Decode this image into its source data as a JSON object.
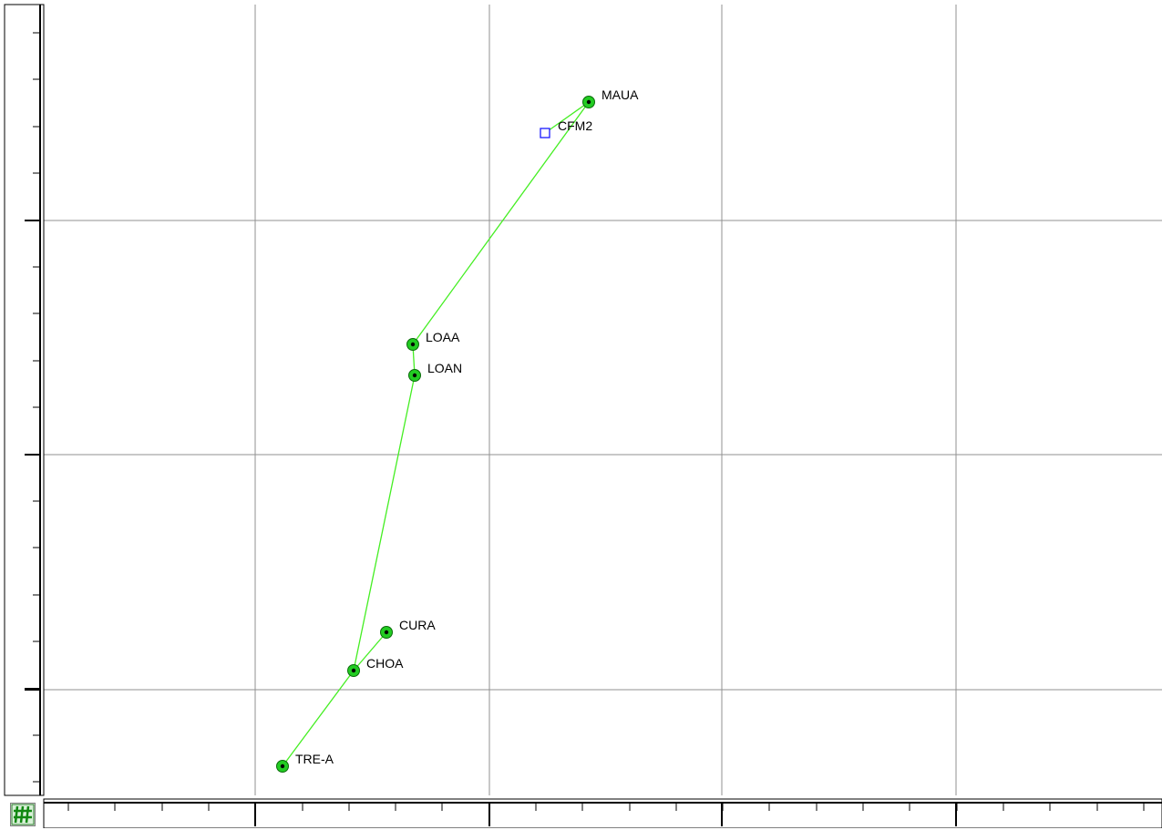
{
  "colors": {
    "line": "#44ee22",
    "node_fill": "#22cc22",
    "node_dot": "#000000",
    "square_marker": "#1a1aff",
    "grid": "#909090",
    "axis": "#000000"
  },
  "icons": {
    "corner_button": "green-grid-toggle-icon"
  },
  "nodes": [
    {
      "id": "MAUA",
      "label": "MAUA",
      "marker": "circle"
    },
    {
      "id": "CFM2",
      "label": "CFM2",
      "marker": "square"
    },
    {
      "id": "LOAA",
      "label": "LOAA",
      "marker": "circle"
    },
    {
      "id": "LOAN",
      "label": "LOAN",
      "marker": "circle"
    },
    {
      "id": "CURA",
      "label": "CURA",
      "marker": "circle"
    },
    {
      "id": "CHOA",
      "label": "CHOA",
      "marker": "circle"
    },
    {
      "id": "TRE-A",
      "label": "TRE-A",
      "marker": "circle"
    }
  ],
  "connections": [
    [
      "MAUA",
      "CFM2"
    ],
    [
      "MAUA",
      "LOAA"
    ],
    [
      "LOAA",
      "LOAN"
    ],
    [
      "LOAN",
      "CHOA"
    ],
    [
      "CHOA",
      "CURA"
    ],
    [
      "CHOA",
      "TRE-A"
    ]
  ]
}
